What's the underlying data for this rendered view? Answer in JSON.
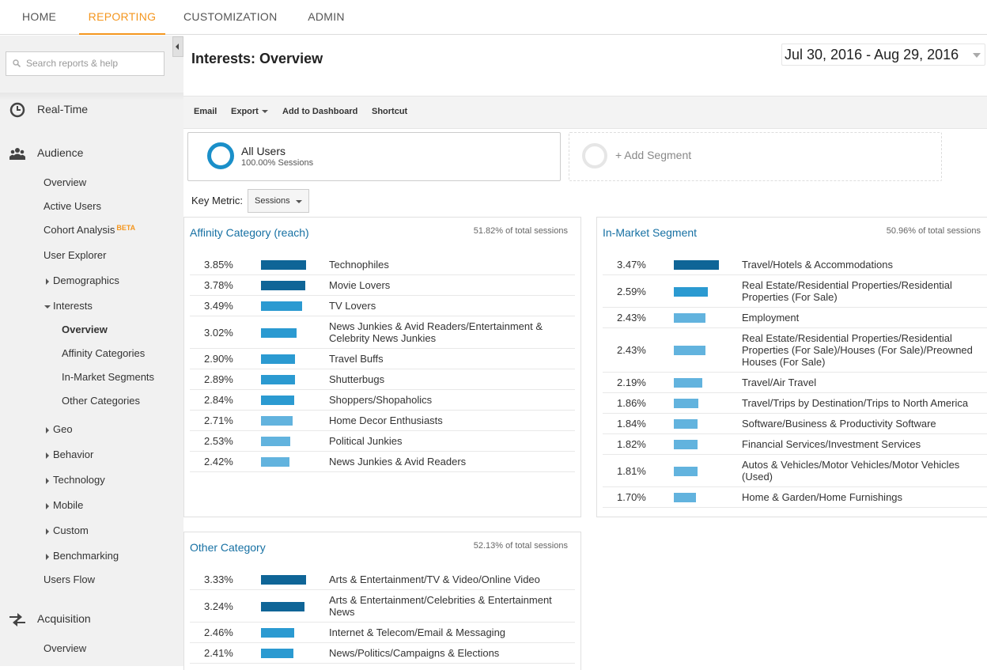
{
  "topnav": [
    {
      "label": "HOME",
      "active": false
    },
    {
      "label": "REPORTING",
      "active": true
    },
    {
      "label": "CUSTOMIZATION",
      "active": false
    },
    {
      "label": "ADMIN",
      "active": false
    }
  ],
  "sidebar": {
    "search_placeholder": "Search reports & help",
    "realtime": "Real-Time",
    "audience": "Audience",
    "audience_items": {
      "overview": "Overview",
      "active_users": "Active Users",
      "cohort": "Cohort Analysis",
      "beta": "BETA",
      "user_explorer": "User Explorer",
      "demographics": "Demographics",
      "interests": "Interests",
      "interests_overview": "Overview",
      "affinity": "Affinity Categories",
      "in_market": "In-Market Segments",
      "other": "Other Categories",
      "geo": "Geo",
      "behavior": "Behavior",
      "technology": "Technology",
      "mobile": "Mobile",
      "custom": "Custom",
      "benchmarking": "Benchmarking",
      "users_flow": "Users Flow"
    },
    "acquisition": "Acquisition",
    "acquisition_overview": "Overview"
  },
  "header": {
    "title": "Interests: Overview",
    "date_range": "Jul 30, 2016 - Aug 29, 2016"
  },
  "toolbar": {
    "email": "Email",
    "export": "Export",
    "add_dashboard": "Add to Dashboard",
    "shortcut": "Shortcut"
  },
  "segment": {
    "name": "All Users",
    "sub": "100.00% Sessions",
    "add": "+ Add Segment"
  },
  "key_metric": {
    "label": "Key Metric:",
    "value": "Sessions"
  },
  "colors": {
    "accent": "#f4961e",
    "link": "#1670a3",
    "bar_dark": "#0f6597",
    "bar_mid": "#2b9ad1",
    "bar_light": "#62b3de"
  },
  "panels": {
    "affinity": {
      "title": "Affinity Category (reach)",
      "pct": "51.82% of total sessions",
      "rows": [
        {
          "value": 3.85,
          "value_label": "3.85%",
          "label": "Technophiles"
        },
        {
          "value": 3.78,
          "value_label": "3.78%",
          "label": "Movie Lovers"
        },
        {
          "value": 3.49,
          "value_label": "3.49%",
          "label": "TV Lovers"
        },
        {
          "value": 3.02,
          "value_label": "3.02%",
          "label": "News Junkies & Avid Readers/Entertainment & Celebrity News Junkies"
        },
        {
          "value": 2.9,
          "value_label": "2.90%",
          "label": "Travel Buffs"
        },
        {
          "value": 2.89,
          "value_label": "2.89%",
          "label": "Shutterbugs"
        },
        {
          "value": 2.84,
          "value_label": "2.84%",
          "label": "Shoppers/Shopaholics"
        },
        {
          "value": 2.71,
          "value_label": "2.71%",
          "label": "Home Decor Enthusiasts"
        },
        {
          "value": 2.53,
          "value_label": "2.53%",
          "label": "Political Junkies"
        },
        {
          "value": 2.42,
          "value_label": "2.42%",
          "label": "News Junkies & Avid Readers"
        }
      ]
    },
    "in_market": {
      "title": "In-Market Segment",
      "pct": "50.96% of total sessions",
      "rows": [
        {
          "value": 3.47,
          "value_label": "3.47%",
          "label": "Travel/Hotels & Accommodations"
        },
        {
          "value": 2.59,
          "value_label": "2.59%",
          "label": "Real Estate/Residential Properties/Residential Properties (For Sale)"
        },
        {
          "value": 2.43,
          "value_label": "2.43%",
          "label": "Employment"
        },
        {
          "value": 2.43,
          "value_label": "2.43%",
          "label": "Real Estate/Residential Properties/Residential Properties (For Sale)/Houses (For Sale)/Preowned Houses (For Sale)"
        },
        {
          "value": 2.19,
          "value_label": "2.19%",
          "label": "Travel/Air Travel"
        },
        {
          "value": 1.86,
          "value_label": "1.86%",
          "label": "Travel/Trips by Destination/Trips to North America"
        },
        {
          "value": 1.84,
          "value_label": "1.84%",
          "label": "Software/Business & Productivity Software"
        },
        {
          "value": 1.82,
          "value_label": "1.82%",
          "label": "Financial Services/Investment Services"
        },
        {
          "value": 1.81,
          "value_label": "1.81%",
          "label": "Autos & Vehicles/Motor Vehicles/Motor Vehicles (Used)"
        },
        {
          "value": 1.7,
          "value_label": "1.70%",
          "label": "Home & Garden/Home Furnishings"
        }
      ]
    },
    "other": {
      "title": "Other Category",
      "pct": "52.13% of total sessions",
      "rows": [
        {
          "value": 3.33,
          "value_label": "3.33%",
          "label": "Arts & Entertainment/TV & Video/Online Video"
        },
        {
          "value": 3.24,
          "value_label": "3.24%",
          "label": "Arts & Entertainment/Celebrities & Entertainment News"
        },
        {
          "value": 2.46,
          "value_label": "2.46%",
          "label": "Internet & Telecom/Email & Messaging"
        },
        {
          "value": 2.41,
          "value_label": "2.41%",
          "label": "News/Politics/Campaigns & Elections"
        }
      ]
    }
  }
}
